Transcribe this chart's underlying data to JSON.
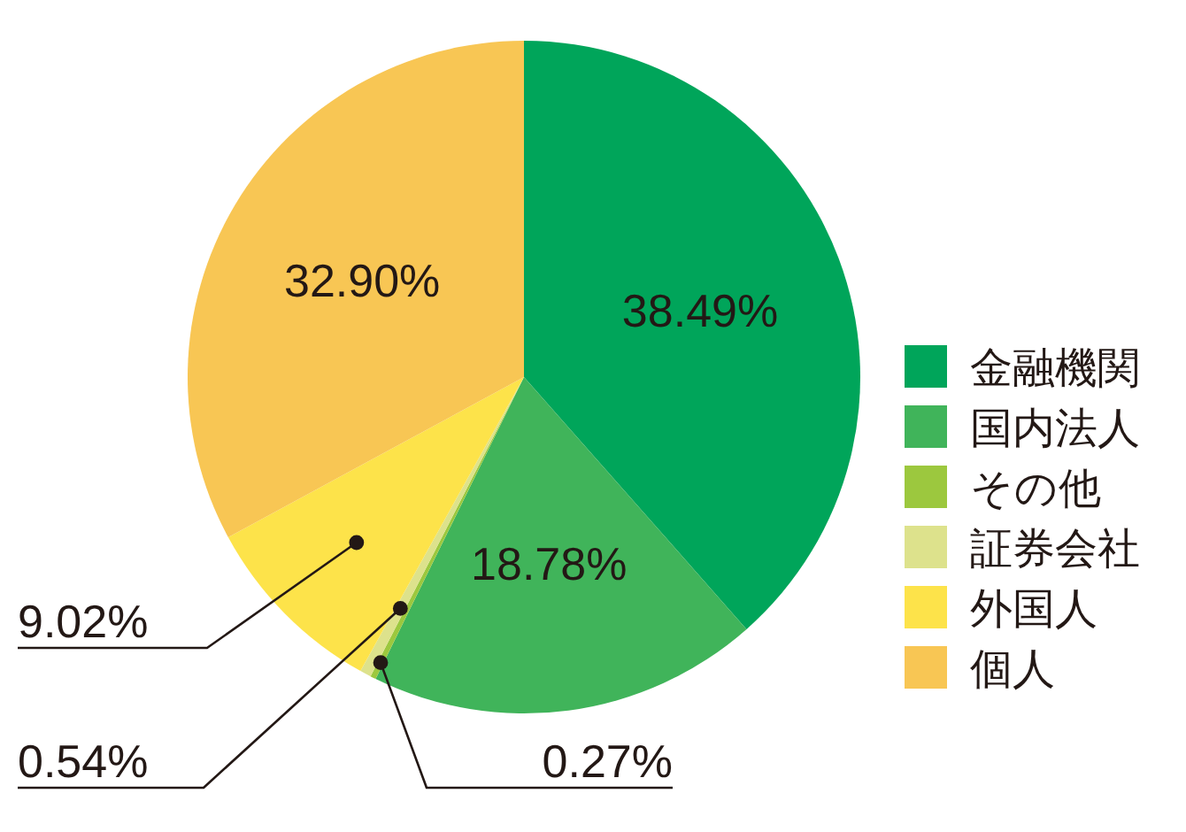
{
  "chart_data": {
    "type": "pie",
    "categories": [
      "金融機関",
      "国内法人",
      "その他",
      "証券会社",
      "外国人",
      "個人"
    ],
    "values": [
      38.49,
      18.78,
      0.27,
      0.54,
      9.02,
      32.9
    ],
    "colors": [
      "#00a55a",
      "#40b45a",
      "#9cc83e",
      "#dde28c",
      "#fde34a",
      "#f8c654"
    ],
    "value_labels": [
      "38.49%",
      "18.78%",
      "0.27%",
      "0.54%",
      "9.02%",
      "32.90%"
    ],
    "legend": "right"
  }
}
